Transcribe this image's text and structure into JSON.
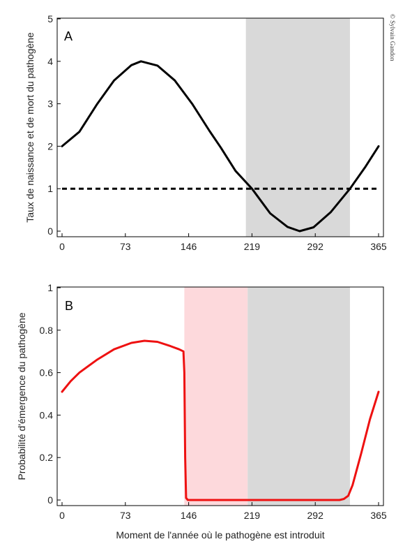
{
  "copyright": "© Sylvain Gandon",
  "chart_data": [
    {
      "type": "line",
      "panel_label": "A",
      "ylabel": "Taux de naissance et de mort du pathogène",
      "xlabel": "",
      "xlim": [
        0,
        365
      ],
      "ylim": [
        0,
        5
      ],
      "x_ticks": [
        "0",
        "73",
        "146",
        "219",
        "292",
        "365"
      ],
      "y_ticks": [
        "0",
        "1",
        "2",
        "3",
        "4",
        "5"
      ],
      "shaded_regions": [
        {
          "x_start": 212,
          "x_end": 332,
          "color": "#d9d9d9"
        }
      ],
      "series": [
        {
          "style": "solid",
          "color": "#000000",
          "x": [
            0,
            20,
            40,
            60,
            80,
            91,
            110,
            130,
            150,
            170,
            183,
            200,
            219,
            240,
            260,
            274,
            290,
            310,
            332,
            350,
            365
          ],
          "y": [
            2.0,
            2.34,
            2.98,
            3.55,
            3.91,
            4.0,
            3.9,
            3.55,
            3.0,
            2.36,
            1.97,
            1.42,
            1.0,
            0.42,
            0.1,
            0.0,
            0.09,
            0.45,
            1.0,
            1.52,
            2.0
          ]
        },
        {
          "style": "dashed",
          "color": "#000000",
          "x": [
            0,
            365
          ],
          "y": [
            1,
            1
          ]
        }
      ]
    },
    {
      "type": "line",
      "panel_label": "B",
      "ylabel": "Probabilité d'émergence du pathogène",
      "xlabel": "Moment de l'année où le pathogène est introduit",
      "xlim": [
        0,
        365
      ],
      "ylim": [
        0,
        1
      ],
      "x_ticks": [
        "0",
        "73",
        "146",
        "219",
        "292",
        "365"
      ],
      "y_ticks": [
        "0",
        "0.2",
        "0.4",
        "0.6",
        "0.8",
        "1"
      ],
      "shaded_regions": [
        {
          "x_start": 141,
          "x_end": 214,
          "color": "#fdd9dc"
        },
        {
          "x_start": 214,
          "x_end": 332,
          "color": "#d9d9d9"
        }
      ],
      "series": [
        {
          "style": "solid",
          "color": "#ee1111",
          "x": [
            0,
            10,
            20,
            40,
            60,
            80,
            95,
            110,
            125,
            135,
            140,
            141,
            142,
            143,
            145,
            160,
            200,
            250,
            300,
            320,
            325,
            330,
            335,
            345,
            355,
            365
          ],
          "y": [
            0.51,
            0.56,
            0.6,
            0.66,
            0.71,
            0.74,
            0.75,
            0.745,
            0.725,
            0.71,
            0.7,
            0.6,
            0.2,
            0.01,
            0.0,
            0.0,
            0.0,
            0.0,
            0.0,
            0.0,
            0.005,
            0.02,
            0.07,
            0.22,
            0.38,
            0.51
          ]
        }
      ]
    }
  ]
}
